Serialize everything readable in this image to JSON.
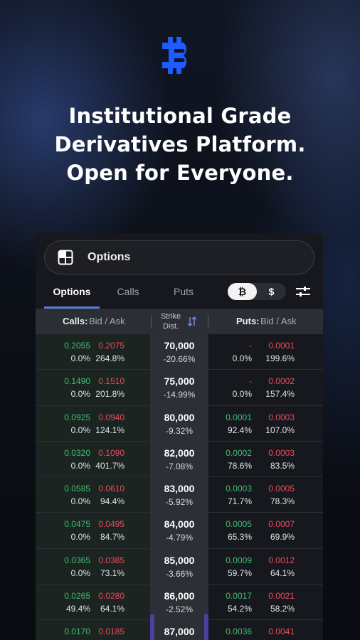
{
  "headline": {
    "line1": "Institutional Grade",
    "line2": "Derivatives Platform.",
    "line3": "Open for Everyone."
  },
  "brand": {
    "accent": "#1f5bff",
    "icon": "bitcoin-b-logo"
  },
  "panel": {
    "title": "Options",
    "tabs": [
      "Options",
      "Calls",
      "Puts"
    ],
    "currency_toggle": {
      "btc": "₿",
      "usd": "$",
      "selected": "btc"
    },
    "header": {
      "calls_bold": "Calls:",
      "calls_rest": "Bid / Ask",
      "strike_line1": "Strike",
      "strike_line2": "Dist.",
      "puts_bold": "Puts:",
      "puts_rest": "Bid / Ask"
    },
    "rows": [
      {
        "call_bid": "0.2055",
        "call_ask": "0.2075",
        "call_bid_pct": "0.0%",
        "call_ask_pct": "264.8%",
        "strike": "70,000",
        "dist": "-20.66%",
        "put_bid": "-",
        "put_ask": "0.0001",
        "put_bid_pct": "0.0%",
        "put_ask_pct": "199.6%"
      },
      {
        "call_bid": "0.1490",
        "call_ask": "0.1510",
        "call_bid_pct": "0.0%",
        "call_ask_pct": "201.8%",
        "strike": "75,000",
        "dist": "-14.99%",
        "put_bid": "-",
        "put_ask": "0.0002",
        "put_bid_pct": "0.0%",
        "put_ask_pct": "157.4%"
      },
      {
        "call_bid": "0.0925",
        "call_ask": "0.0940",
        "call_bid_pct": "0.0%",
        "call_ask_pct": "124.1%",
        "strike": "80,000",
        "dist": "-9.32%",
        "put_bid": "0.0001",
        "put_ask": "0.0003",
        "put_bid_pct": "92.4%",
        "put_ask_pct": "107.0%"
      },
      {
        "call_bid": "0.0320",
        "call_ask": "0.1090",
        "call_bid_pct": "0.0%",
        "call_ask_pct": "401.7%",
        "strike": "82,000",
        "dist": "-7.08%",
        "put_bid": "0.0002",
        "put_ask": "0.0003",
        "put_bid_pct": "78.6%",
        "put_ask_pct": "83.5%"
      },
      {
        "call_bid": "0.0585",
        "call_ask": "0.0610",
        "call_bid_pct": "0.0%",
        "call_ask_pct": "94.4%",
        "strike": "83,000",
        "dist": "-5.92%",
        "put_bid": "0.0003",
        "put_ask": "0.0005",
        "put_bid_pct": "71.7%",
        "put_ask_pct": "78.3%"
      },
      {
        "call_bid": "0.0475",
        "call_ask": "0.0495",
        "call_bid_pct": "0.0%",
        "call_ask_pct": "84.7%",
        "strike": "84,000",
        "dist": "-4.79%",
        "put_bid": "0.0005",
        "put_ask": "0.0007",
        "put_bid_pct": "65.3%",
        "put_ask_pct": "69.9%"
      },
      {
        "call_bid": "0.0365",
        "call_ask": "0.0385",
        "call_bid_pct": "0.0%",
        "call_ask_pct": "73.1%",
        "strike": "85,000",
        "dist": "-3.66%",
        "put_bid": "0.0009",
        "put_ask": "0.0012",
        "put_bid_pct": "59.7%",
        "put_ask_pct": "64.1%"
      },
      {
        "call_bid": "0.0265",
        "call_ask": "0.0280",
        "call_bid_pct": "49.4%",
        "call_ask_pct": "64.1%",
        "strike": "86,000",
        "dist": "-2.52%",
        "put_bid": "0.0017",
        "put_ask": "0.0021",
        "put_bid_pct": "54.2%",
        "put_ask_pct": "58.2%"
      },
      {
        "call_bid": "0.0170",
        "call_ask": "0.0185",
        "call_bid_pct": "",
        "call_ask_pct": "",
        "strike": "87,000",
        "dist": "",
        "put_bid": "0.0036",
        "put_ask": "0.0041",
        "put_bid_pct": "",
        "put_ask_pct": ""
      }
    ]
  }
}
